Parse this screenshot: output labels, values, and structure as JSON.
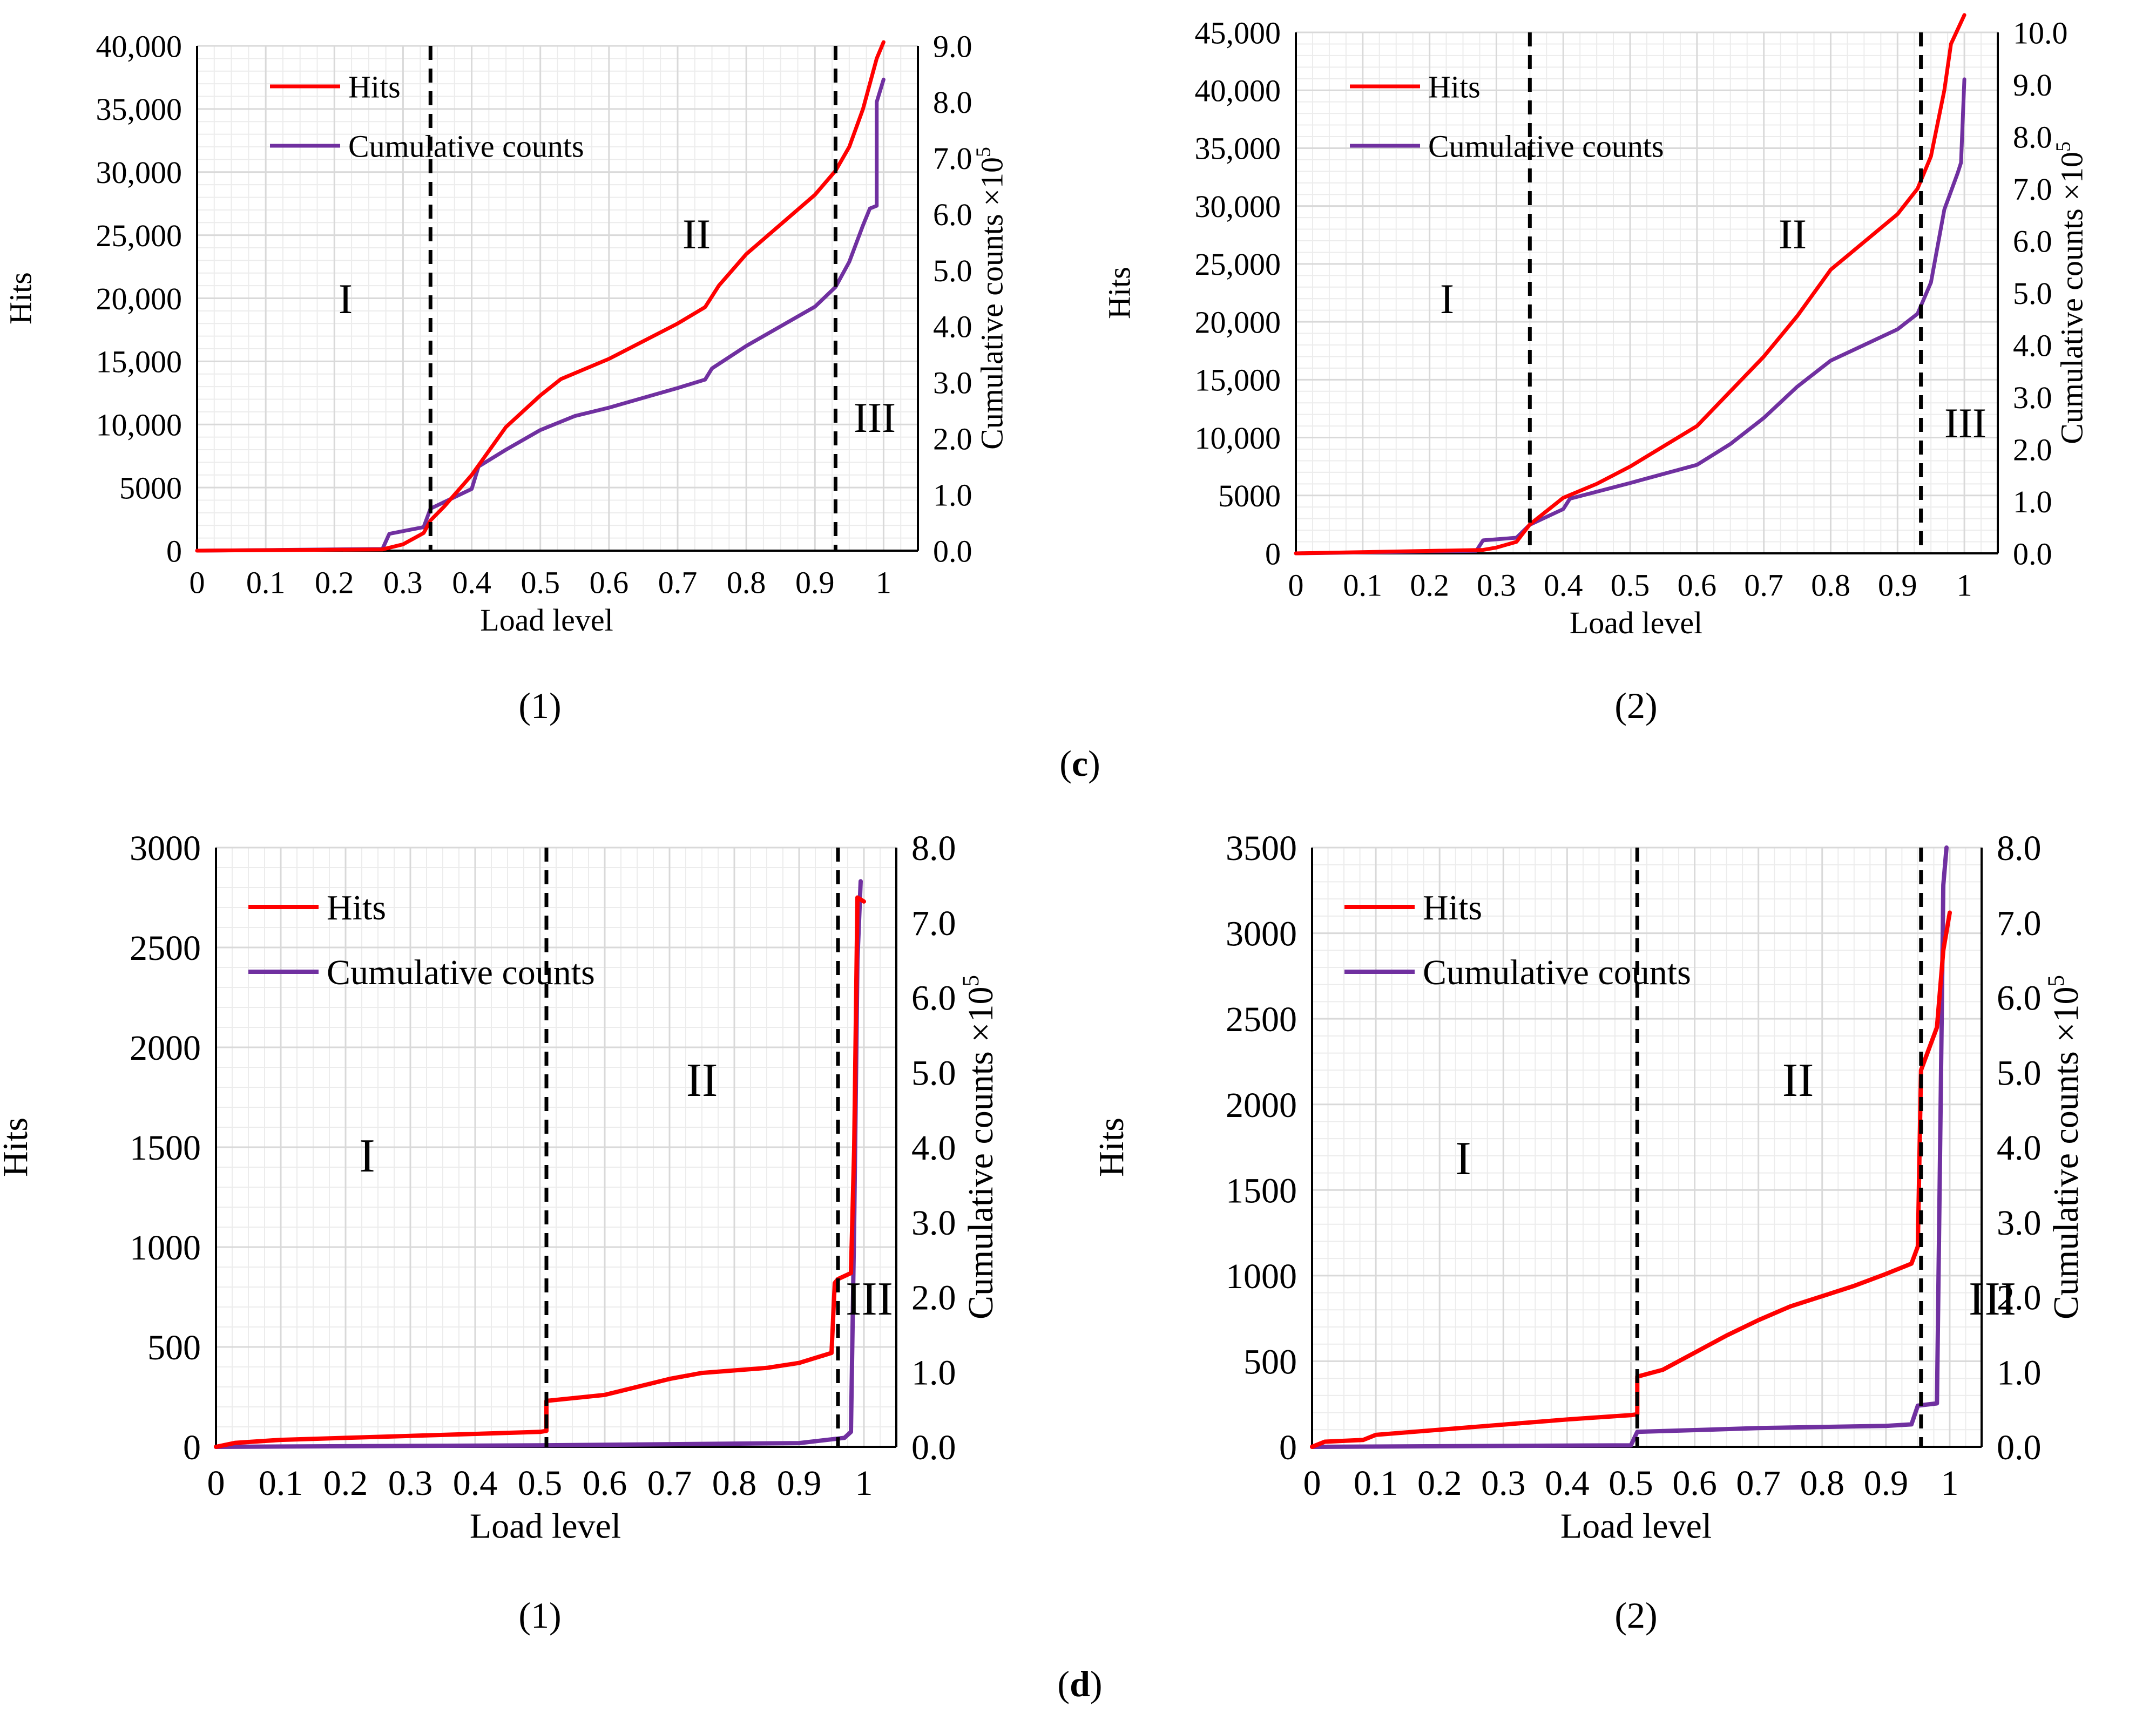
{
  "charts": [
    {
      "id": "c1",
      "caption": "(1)",
      "xlabel": "Load level",
      "ylabel_left": "Hits",
      "ylabel_right": "Cumulative counts ×10",
      "ylabel_right_exp": "5",
      "x_ticks": [
        "0",
        "0.1",
        "0.2",
        "0.3",
        "0.4",
        "0.5",
        "0.6",
        "0.7",
        "0.8",
        "0.9",
        "1"
      ],
      "left_ticks": [
        "0",
        "5000",
        "10,000",
        "15,000",
        "20,000",
        "25,000",
        "30,000",
        "35,000",
        "40,000"
      ],
      "right_ticks": [
        "0.0",
        "1.0",
        "2.0",
        "3.0",
        "4.0",
        "5.0",
        "6.0",
        "7.0",
        "8.0",
        "9.0"
      ],
      "legend": [
        "Hits",
        "Cumulative counts"
      ],
      "zones": [
        "I",
        "II",
        "III"
      ]
    },
    {
      "id": "c2",
      "caption": "(2)",
      "xlabel": "Load level",
      "ylabel_left": "Hits",
      "ylabel_right": "Cumulative counts ×10",
      "ylabel_right_exp": "5",
      "x_ticks": [
        "0",
        "0.1",
        "0.2",
        "0.3",
        "0.4",
        "0.5",
        "0.6",
        "0.7",
        "0.8",
        "0.9",
        "1"
      ],
      "left_ticks": [
        "0",
        "5000",
        "10,000",
        "15,000",
        "20,000",
        "25,000",
        "30,000",
        "35,000",
        "40,000",
        "45,000"
      ],
      "right_ticks": [
        "0.0",
        "1.0",
        "2.0",
        "3.0",
        "4.0",
        "5.0",
        "6.0",
        "7.0",
        "8.0",
        "9.0",
        "10.0"
      ],
      "legend": [
        "Hits",
        "Cumulative counts"
      ],
      "zones": [
        "I",
        "II",
        "III"
      ]
    },
    {
      "id": "d1",
      "caption": "(1)",
      "xlabel": "Load level",
      "ylabel_left": "Hits",
      "ylabel_right": "Cumulative counts ×10",
      "ylabel_right_exp": "5",
      "x_ticks": [
        "0",
        "0.1",
        "0.2",
        "0.3",
        "0.4",
        "0.5",
        "0.6",
        "0.7",
        "0.8",
        "0.9",
        "1"
      ],
      "left_ticks": [
        "0",
        "500",
        "1000",
        "1500",
        "2000",
        "2500",
        "3000"
      ],
      "right_ticks": [
        "0.0",
        "1.0",
        "2.0",
        "3.0",
        "4.0",
        "5.0",
        "6.0",
        "7.0",
        "8.0"
      ],
      "legend": [
        "Hits",
        "Cumulative counts"
      ],
      "zones": [
        "I",
        "II",
        "III"
      ]
    },
    {
      "id": "d2",
      "caption": "(2)",
      "xlabel": "Load level",
      "ylabel_left": "Hits",
      "ylabel_right": "Cumulative counts ×10",
      "ylabel_right_exp": "5",
      "x_ticks": [
        "0",
        "0.1",
        "0.2",
        "0.3",
        "0.4",
        "0.5",
        "0.6",
        "0.7",
        "0.8",
        "0.9",
        "1"
      ],
      "left_ticks": [
        "0",
        "500",
        "1000",
        "1500",
        "2000",
        "2500",
        "3000",
        "3500"
      ],
      "right_ticks": [
        "0.0",
        "1.0",
        "2.0",
        "3.0",
        "4.0",
        "5.0",
        "6.0",
        "7.0",
        "8.0"
      ],
      "legend": [
        "Hits",
        "Cumulative counts"
      ],
      "zones": [
        "I",
        "II",
        "III"
      ]
    }
  ],
  "group_labels": {
    "c": "c",
    "d": "d",
    "open": "(",
    "close": ")"
  },
  "colors": {
    "hits": "#ff0000",
    "cumulative": "#7030a0",
    "grid": "#d9d9d9",
    "divider": "#000000"
  },
  "chart_data": [
    {
      "type": "line",
      "title": "(c)(1)",
      "xlabel": "Load level",
      "ylabel": "Hits",
      "ylabel_right": "Cumulative counts ×10^5",
      "xlim": [
        0,
        1.05
      ],
      "ylim": [
        0,
        40000
      ],
      "ylim_right": [
        0,
        9.0
      ],
      "dividers_x": [
        0.34,
        0.93
      ],
      "series": [
        {
          "name": "Hits",
          "axis": "left",
          "x": [
            0,
            0.27,
            0.3,
            0.33,
            0.34,
            0.36,
            0.4,
            0.45,
            0.5,
            0.53,
            0.6,
            0.7,
            0.74,
            0.76,
            0.8,
            0.9,
            0.93,
            0.95,
            0.97,
            0.98,
            0.99,
            1.0
          ],
          "y": [
            0,
            100,
            500,
            1400,
            2400,
            3500,
            6000,
            9800,
            12300,
            13600,
            15200,
            18000,
            19300,
            21000,
            23500,
            28200,
            30100,
            32000,
            35000,
            37000,
            39000,
            40300
          ]
        },
        {
          "name": "Cumulative counts",
          "axis": "right",
          "x": [
            0,
            0.27,
            0.28,
            0.33,
            0.34,
            0.4,
            0.41,
            0.45,
            0.5,
            0.55,
            0.6,
            0.7,
            0.74,
            0.75,
            0.8,
            0.9,
            0.93,
            0.95,
            0.97,
            0.98,
            0.99,
            0.99,
            1.0
          ],
          "y": [
            0,
            0.03,
            0.3,
            0.42,
            0.75,
            1.1,
            1.5,
            1.8,
            2.15,
            2.4,
            2.55,
            2.9,
            3.05,
            3.25,
            3.65,
            4.35,
            4.7,
            5.15,
            5.8,
            6.1,
            6.15,
            8.0,
            8.4
          ]
        }
      ]
    },
    {
      "type": "line",
      "title": "(c)(2)",
      "xlabel": "Load level",
      "ylabel": "Hits",
      "ylabel_right": "Cumulative counts ×10^5",
      "xlim": [
        0,
        1.05
      ],
      "ylim": [
        0,
        45000
      ],
      "ylim_right": [
        0,
        10.0
      ],
      "dividers_x": [
        0.35,
        0.935
      ],
      "series": [
        {
          "name": "Hits",
          "axis": "left",
          "x": [
            0,
            0.28,
            0.3,
            0.33,
            0.35,
            0.4,
            0.45,
            0.5,
            0.6,
            0.7,
            0.75,
            0.8,
            0.9,
            0.93,
            0.95,
            0.97,
            0.98,
            1.0
          ],
          "y": [
            0,
            300,
            500,
            1000,
            2500,
            4800,
            6000,
            7500,
            11000,
            17000,
            20500,
            24500,
            29300,
            31500,
            34300,
            40000,
            44000,
            46500
          ]
        },
        {
          "name": "Cumulative counts",
          "axis": "right",
          "x": [
            0,
            0.27,
            0.28,
            0.33,
            0.35,
            0.4,
            0.41,
            0.5,
            0.6,
            0.65,
            0.7,
            0.75,
            0.8,
            0.9,
            0.93,
            0.95,
            0.97,
            0.99,
            0.995,
            1.0
          ],
          "y": [
            0,
            0.05,
            0.25,
            0.3,
            0.55,
            0.85,
            1.05,
            1.35,
            1.7,
            2.1,
            2.6,
            3.2,
            3.7,
            4.3,
            4.6,
            5.2,
            6.6,
            7.3,
            7.5,
            9.1
          ]
        }
      ]
    },
    {
      "type": "line",
      "title": "(d)(1)",
      "xlabel": "Load level",
      "ylabel": "Hits",
      "ylabel_right": "Cumulative counts ×10^5",
      "xlim": [
        0,
        1.05
      ],
      "ylim": [
        0,
        3000
      ],
      "ylim_right": [
        0,
        8.0
      ],
      "dividers_x": [
        0.51,
        0.96
      ],
      "series": [
        {
          "name": "Hits",
          "axis": "left",
          "x": [
            0,
            0.03,
            0.1,
            0.3,
            0.5,
            0.51,
            0.51,
            0.6,
            0.7,
            0.75,
            0.85,
            0.9,
            0.95,
            0.955,
            0.96,
            0.98,
            0.985,
            0.99,
            1.0
          ],
          "y": [
            0,
            20,
            35,
            55,
            75,
            80,
            230,
            260,
            340,
            370,
            395,
            420,
            470,
            820,
            840,
            870,
            1500,
            2750,
            2730
          ]
        },
        {
          "name": "Cumulative counts",
          "axis": "right",
          "x": [
            0,
            0.5,
            0.9,
            0.97,
            0.98,
            0.985,
            0.99,
            0.995
          ],
          "y": [
            0,
            0.02,
            0.05,
            0.12,
            0.2,
            3.0,
            6.5,
            7.55
          ]
        }
      ]
    },
    {
      "type": "line",
      "title": "(d)(2)",
      "xlabel": "Load level",
      "ylabel": "Hits",
      "ylabel_right": "Cumulative counts ×10^5",
      "xlim": [
        0,
        1.05
      ],
      "ylim": [
        0,
        3500
      ],
      "ylim_right": [
        0,
        8.0
      ],
      "dividers_x": [
        0.51,
        0.955
      ],
      "series": [
        {
          "name": "Hits",
          "axis": "left",
          "x": [
            0,
            0.02,
            0.08,
            0.1,
            0.2,
            0.3,
            0.4,
            0.5,
            0.51,
            0.51,
            0.55,
            0.6,
            0.65,
            0.7,
            0.75,
            0.8,
            0.85,
            0.9,
            0.94,
            0.95,
            0.955,
            0.97,
            0.98,
            0.99,
            1.0
          ],
          "y": [
            0,
            30,
            40,
            70,
            100,
            130,
            160,
            185,
            190,
            410,
            450,
            550,
            650,
            740,
            820,
            880,
            940,
            1010,
            1070,
            1170,
            2200,
            2350,
            2450,
            2900,
            3120
          ]
        },
        {
          "name": "Cumulative counts",
          "axis": "right",
          "x": [
            0,
            0.5,
            0.51,
            0.7,
            0.9,
            0.94,
            0.95,
            0.98,
            0.985,
            0.99,
            0.995
          ],
          "y": [
            0,
            0.02,
            0.2,
            0.25,
            0.28,
            0.3,
            0.55,
            0.58,
            4.0,
            7.5,
            8.0
          ]
        }
      ]
    }
  ]
}
